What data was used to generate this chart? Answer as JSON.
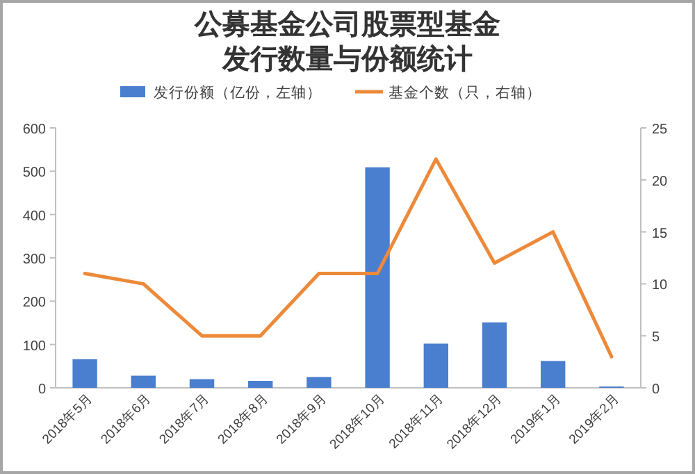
{
  "chart_data": {
    "type": "bar",
    "title": "公募基金公司股票型基金发行数量与份额统计",
    "categories": [
      "2018年5月",
      "2018年6月",
      "2018年7月",
      "2018年8月",
      "2018年9月",
      "2018年10月",
      "2018年11月",
      "2018年12月",
      "2019年1月",
      "2019年2月"
    ],
    "series": [
      {
        "name": "发行份额（亿份，左轴）",
        "color": "#4a7ecf",
        "values": [
          66,
          28,
          20,
          16,
          25,
          509,
          102,
          151,
          62,
          3
        ]
      },
      {
        "name": "基金个数（只，右轴）",
        "type": "line",
        "axis": "y2",
        "color": "#ed8a3a",
        "values": [
          11,
          10,
          5,
          5,
          11,
          11,
          22,
          12,
          15,
          3
        ]
      }
    ],
    "ylim": [
      0,
      600
    ],
    "yticks": [
      0,
      100,
      200,
      300,
      400,
      500,
      600
    ],
    "y2lim": [
      0,
      25
    ],
    "y2ticks": [
      0,
      5,
      10,
      15,
      20,
      25
    ],
    "legend": "top",
    "grid": false,
    "marker": "none"
  }
}
